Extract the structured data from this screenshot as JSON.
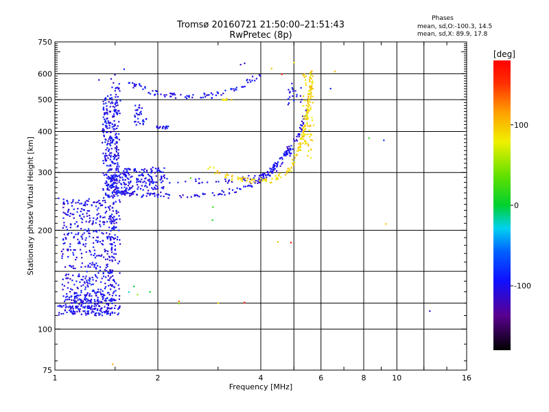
{
  "chart_data": {
    "type": "scatter",
    "title": "Tromsø 20160721 21:50:00–21:51:43",
    "subtitle": "RwPretec (8p)",
    "xlabel": "Frequency [MHz]",
    "ylabel": "Stationary phase Virtual Height [km]",
    "x_scale": "log",
    "y_scale": "log",
    "xlim": [
      1,
      16
    ],
    "ylim": [
      75,
      750
    ],
    "x_ticks": [
      1,
      2,
      4,
      6,
      8,
      10,
      16
    ],
    "y_ticks": [
      75,
      100,
      200,
      300,
      400,
      500,
      600,
      750
    ],
    "grid": true,
    "stats": {
      "heading": "Phases",
      "line1": "mean, sd,O:-100.3, 14.5",
      "line2": "mean, sd,X:  89.9, 17.8"
    },
    "colorbar": {
      "unit_label": "[deg]",
      "ticks": [
        "100",
        "0",
        "-100"
      ],
      "tick_values": [
        100,
        0,
        -100
      ],
      "range": [
        -180,
        180
      ]
    },
    "series": [
      {
        "phase": -100,
        "traces": [
          {
            "x_range": [
              1.02,
              1.55
            ],
            "y_range": [
              110,
              118
            ],
            "n": 120,
            "shape": "band"
          },
          {
            "x_range": [
              1.05,
              1.5
            ],
            "y_range": [
              115,
              250
            ],
            "n": 500,
            "shape": "cloud"
          },
          {
            "x_range": [
              1.38,
              1.52
            ],
            "y_range": [
              250,
              520
            ],
            "n": 220,
            "shape": "cloud"
          },
          {
            "x_range": [
              1.45,
              1.55
            ],
            "y_range": [
              118,
              600
            ],
            "n": 150,
            "shape": "column"
          },
          {
            "x_range": [
              1.45,
              2.1
            ],
            "y_range": [
              258,
              310
            ],
            "n": 200,
            "shape": "cloud"
          },
          {
            "x": [
              1.52,
              1.8,
              2.3,
              3.0,
              3.6,
              4.0,
              4.4,
              4.8,
              5.1,
              5.3,
              5.45
            ],
            "y": [
              262,
              256,
              255,
              258,
              268,
              285,
              305,
              340,
              380,
              420,
              460
            ],
            "n": 160,
            "shape": "curve"
          },
          {
            "x": [
              1.5,
              1.8,
              2.5,
              3.2,
              3.8,
              4.2,
              4.6,
              4.9
            ],
            "y": [
              300,
              285,
              282,
              283,
              290,
              300,
              330,
              360
            ],
            "n": 100,
            "shape": "curve"
          },
          {
            "x": [
              1.65,
              2.0,
              2.5,
              3.0,
              3.5,
              4.0
            ],
            "y": [
              560,
              520,
              512,
              518,
              550,
              600
            ],
            "n": 90,
            "shape": "curve"
          },
          {
            "x_range": [
              1.7,
              1.85
            ],
            "y_range": [
              420,
              480
            ],
            "n": 30,
            "shape": "cloud"
          },
          {
            "x_range": [
              1.98,
              2.15
            ],
            "y_range": [
              408,
              415
            ],
            "n": 15,
            "shape": "band"
          },
          {
            "x_range": [
              4.8,
              5.3
            ],
            "y_range": [
              480,
              560
            ],
            "n": 20,
            "shape": "column"
          },
          {
            "x_range": [
              1.1,
              1.4
            ],
            "y_range": [
              120,
              130
            ],
            "n": 60,
            "shape": "cloud"
          }
        ]
      },
      {
        "phase": 90,
        "traces": [
          {
            "x": [
              2.8,
              3.3,
              3.8,
              4.3,
              4.8,
              5.1,
              5.35,
              5.5,
              5.6,
              5.65
            ],
            "y": [
              310,
              288,
              282,
              285,
              300,
              340,
              400,
              470,
              540,
              620
            ],
            "n": 180,
            "shape": "curve"
          },
          {
            "x_range": [
              5.3,
              5.7
            ],
            "y_range": [
              330,
              600
            ],
            "n": 60,
            "shape": "column"
          },
          {
            "x_range": [
              3.1,
              3.3
            ],
            "y_range": [
              495,
              505
            ],
            "n": 8,
            "shape": "band"
          }
        ]
      }
    ],
    "outliers": [
      {
        "x": 1.03,
        "y": 250,
        "phase": -100
      },
      {
        "x": 1.06,
        "y": 240,
        "phase": -100
      },
      {
        "x": 1.35,
        "y": 575,
        "phase": -100
      },
      {
        "x": 1.48,
        "y": 78,
        "phase": 90
      },
      {
        "x": 1.6,
        "y": 620,
        "phase": -100
      },
      {
        "x": 1.7,
        "y": 135,
        "phase": 10
      },
      {
        "x": 1.65,
        "y": 130,
        "phase": -20
      },
      {
        "x": 1.75,
        "y": 128,
        "phase": 50
      },
      {
        "x": 1.9,
        "y": 130,
        "phase": -10
      },
      {
        "x": 2.3,
        "y": 122,
        "phase": 130
      },
      {
        "x": 2.3,
        "y": 120,
        "phase": 60
      },
      {
        "x": 2.5,
        "y": 290,
        "phase": 20
      },
      {
        "x": 3.0,
        "y": 120,
        "phase": 90
      },
      {
        "x": 2.9,
        "y": 215,
        "phase": 20
      },
      {
        "x": 2.9,
        "y": 235,
        "phase": 30
      },
      {
        "x": 3.6,
        "y": 120,
        "phase": 150
      },
      {
        "x": 3.5,
        "y": 640,
        "phase": -120
      },
      {
        "x": 3.6,
        "y": 645,
        "phase": -120
      },
      {
        "x": 4.5,
        "y": 185,
        "phase": 90
      },
      {
        "x": 4.9,
        "y": 184,
        "phase": 160
      },
      {
        "x": 4.3,
        "y": 620,
        "phase": 90
      },
      {
        "x": 4.6,
        "y": 600,
        "phase": 170
      },
      {
        "x": 5.0,
        "y": 650,
        "phase": 90
      },
      {
        "x": 6.4,
        "y": 540,
        "phase": -100
      },
      {
        "x": 6.6,
        "y": 610,
        "phase": 90
      },
      {
        "x": 8.3,
        "y": 380,
        "phase": 30
      },
      {
        "x": 9.2,
        "y": 375,
        "phase": -100
      },
      {
        "x": 9.3,
        "y": 210,
        "phase": 100
      },
      {
        "x": 12.5,
        "y": 113,
        "phase": -100
      }
    ]
  }
}
